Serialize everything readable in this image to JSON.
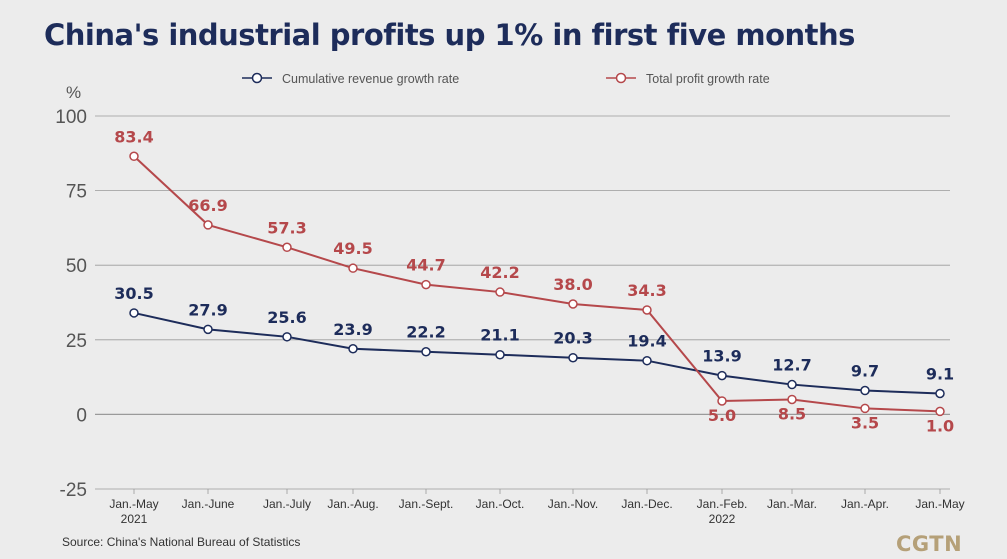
{
  "title": "China's industrial profits up 1% in first five months",
  "source": "Source: China's National Bureau of Statistics",
  "logo": "CGTN",
  "colors": {
    "revenue": "#1d2c5a",
    "profit": "#b5484b",
    "grid": "#9a9a9a",
    "axis_text": "#555555",
    "background": "#ececec"
  },
  "chart_data": {
    "type": "line",
    "title": "China's industrial profits up 1% in first five months",
    "ylabel": "%",
    "xlabel": "",
    "ylim": [
      -25,
      100
    ],
    "yticks": [
      100,
      75,
      50,
      25,
      0,
      -25
    ],
    "grid": true,
    "legend_position": "top",
    "categories": [
      "Jan.-May",
      "Jan.-June",
      "Jan.-July",
      "Jan.-Aug.",
      "Jan.-Sept.",
      "Jan.-Oct.",
      "Jan.-Nov.",
      "Jan.-Dec.",
      "Jan.-Feb.",
      "Jan.-Mar.",
      "Jan.-Apr.",
      "Jan.-May"
    ],
    "category_sublabels": [
      "2021",
      "",
      "",
      "",
      "",
      "",
      "",
      "",
      "2022",
      "",
      "",
      ""
    ],
    "series": [
      {
        "name": "Cumulative revenue growth rate",
        "key": "revenue",
        "values": [
          30.5,
          27.9,
          25.6,
          23.9,
          22.2,
          21.1,
          20.3,
          19.4,
          13.9,
          12.7,
          9.7,
          9.1
        ],
        "point_values": [
          34,
          28.5,
          26,
          22,
          21,
          20,
          19,
          18,
          13,
          10,
          8,
          7
        ],
        "labels": [
          "30.5",
          "27.9",
          "25.6",
          "23.9",
          "22.2",
          "21.1",
          "20.3",
          "19.4",
          "13.9",
          "12.7",
          "9.7",
          "9.1"
        ]
      },
      {
        "name": "Total profit growth rate",
        "key": "profit",
        "values": [
          83.4,
          66.9,
          57.3,
          49.5,
          44.7,
          42.2,
          38.0,
          34.3,
          5.0,
          8.5,
          3.5,
          1.0
        ],
        "point_values": [
          86.5,
          63.5,
          56,
          49,
          43.5,
          41,
          37,
          35,
          4.5,
          5,
          2,
          1
        ],
        "labels": [
          "83.4",
          "66.9",
          "57.3",
          "49.5",
          "44.7",
          "42.2",
          "38.0",
          "34.3",
          "5.0",
          "8.5",
          "3.5",
          "1.0"
        ]
      }
    ]
  }
}
